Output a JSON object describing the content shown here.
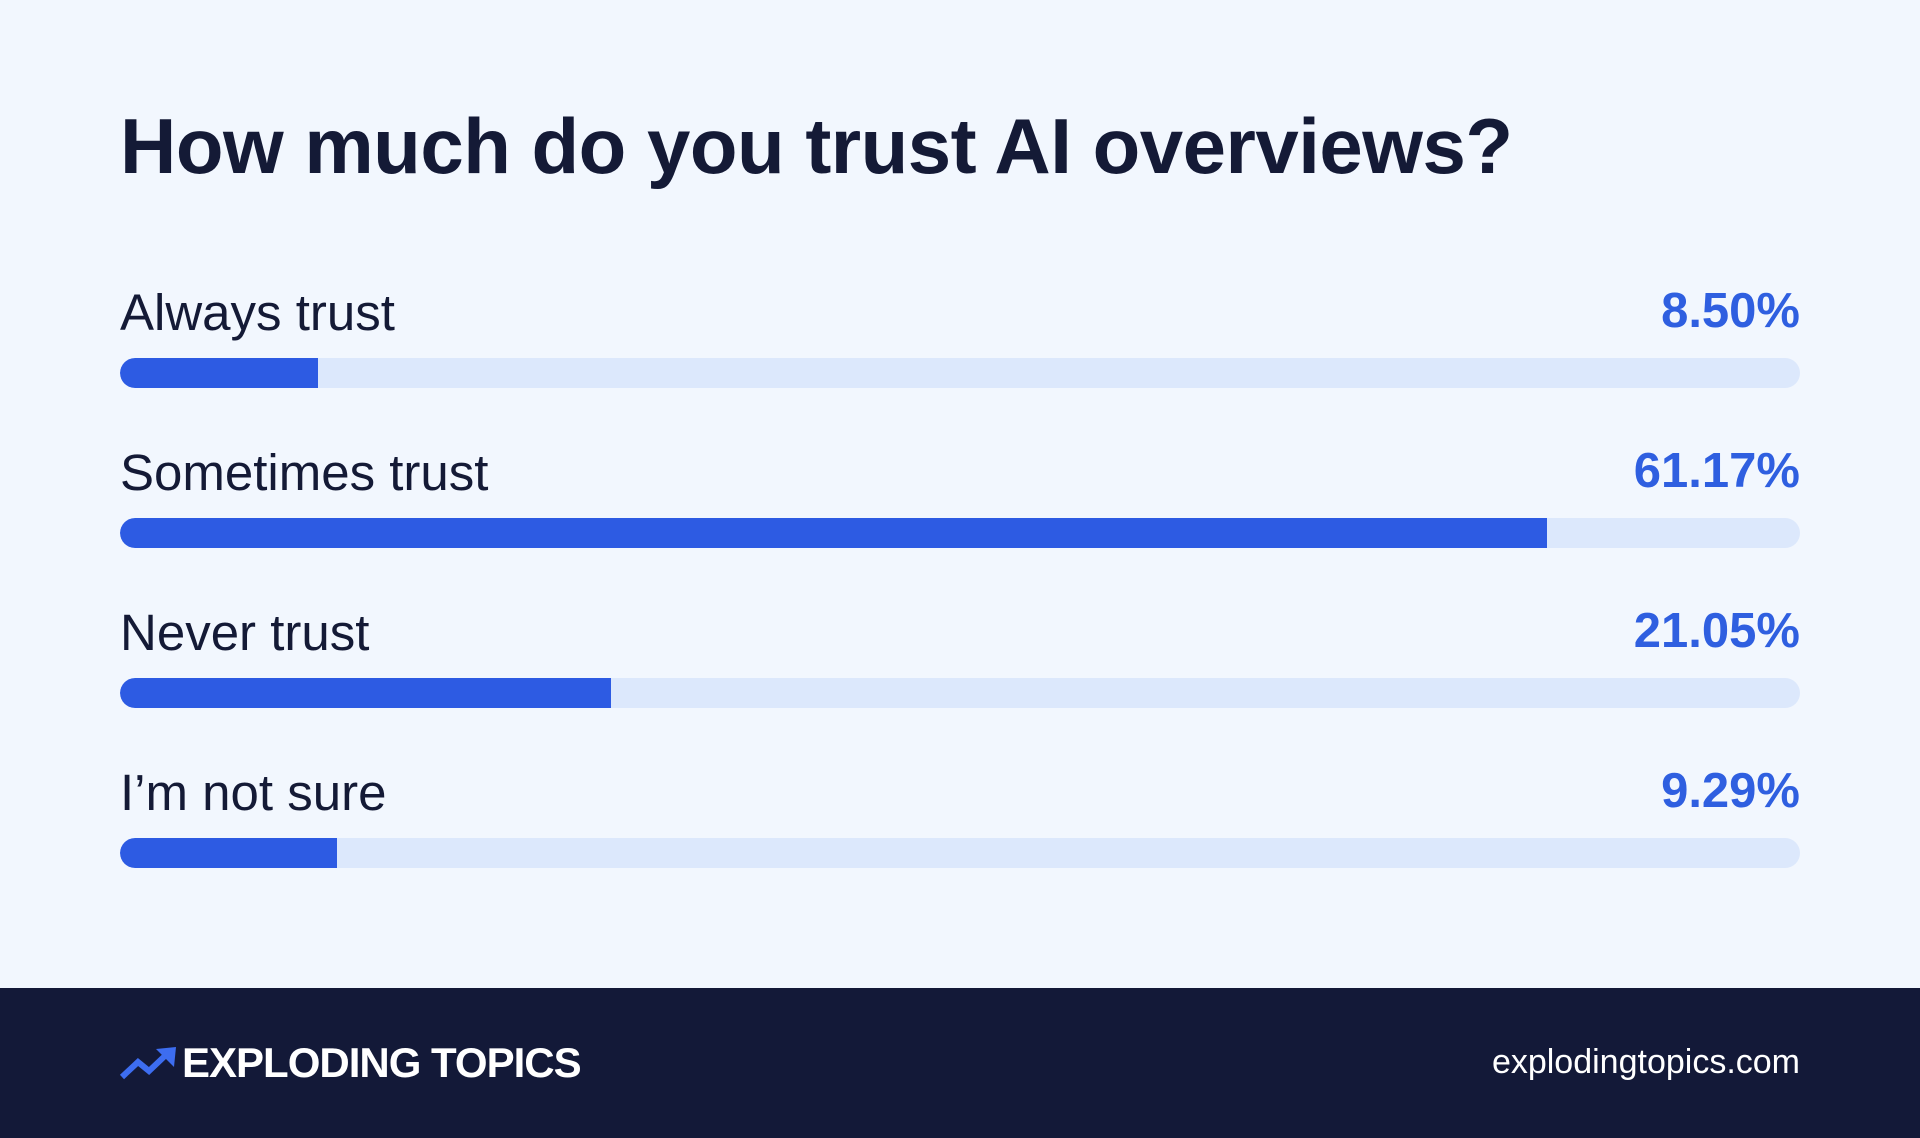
{
  "chart_data": {
    "type": "bar",
    "orientation": "horizontal",
    "title": "How much do you trust AI overviews?",
    "categories": [
      "Always trust",
      "Sometimes trust",
      "Never trust",
      "I’m not sure"
    ],
    "values": [
      8.5,
      61.17,
      21.05,
      9.29
    ],
    "value_labels": [
      "8.50%",
      "61.17%",
      "21.05%",
      "9.29%"
    ],
    "unit": "%",
    "xlim": [
      0,
      72
    ],
    "grid": false,
    "legend": "none",
    "colors": {
      "bar": "#2d5be3",
      "track": "#dce8fc",
      "value_text": "#2f5fe0",
      "label_text": "#141a36"
    }
  },
  "footer": {
    "brand": "EXPLODING TOPICS",
    "logo_icon": "trend-arrow-icon",
    "url": "explodingtopics.com",
    "background": "#131938"
  },
  "page": {
    "background": "#f2f7fe"
  }
}
